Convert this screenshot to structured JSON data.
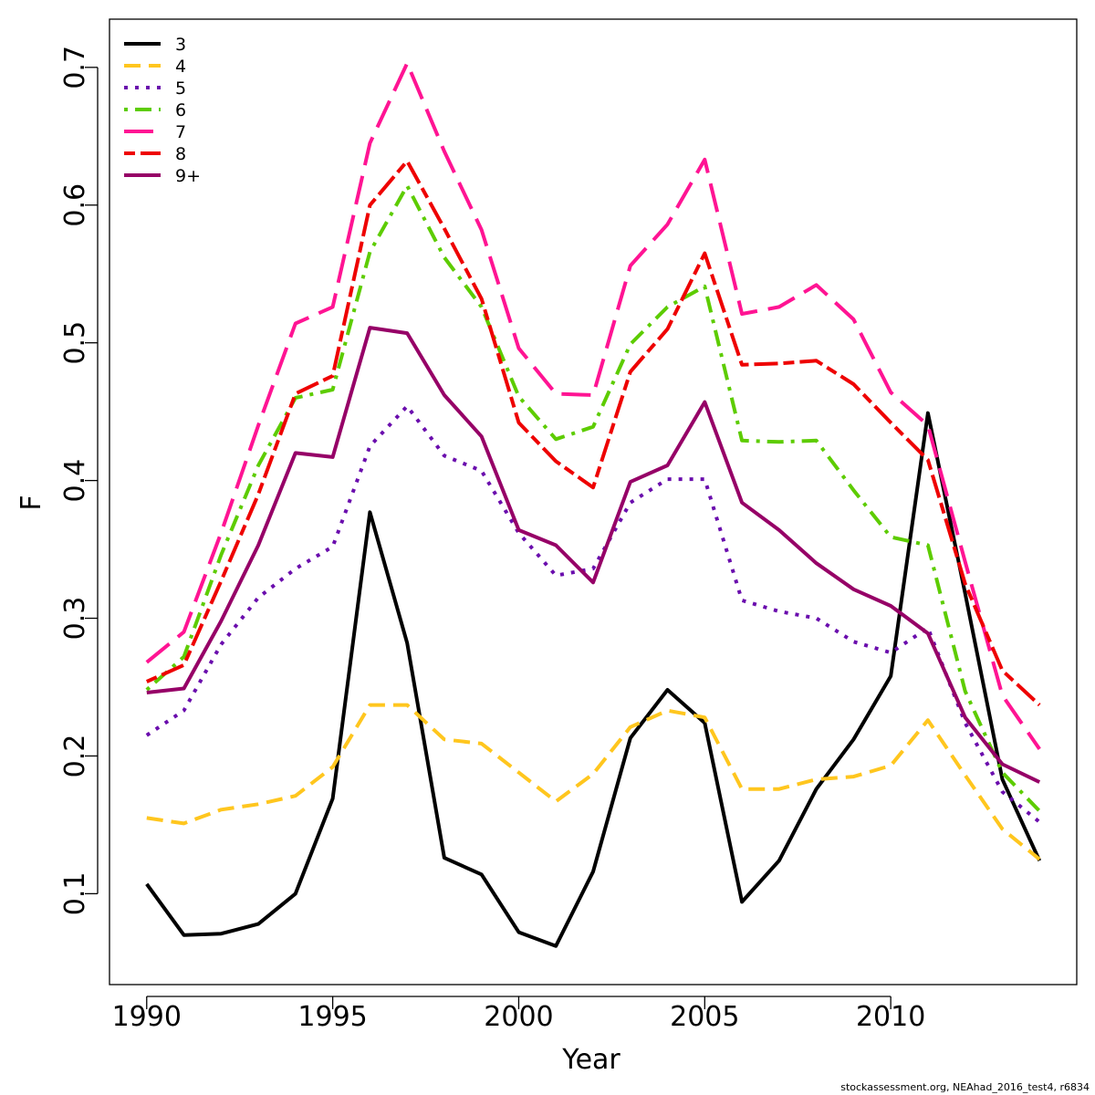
{
  "chart_data": {
    "type": "line",
    "xlabel": "Year",
    "ylabel": "F",
    "xlim": [
      1989,
      2015
    ],
    "ylim": [
      0.034,
      0.735
    ],
    "xticks": [
      1990,
      1995,
      2000,
      2005,
      2010
    ],
    "xtick_labels": [
      "1990",
      "1995",
      "2000",
      "2005",
      "2010"
    ],
    "yticks": [
      0.1,
      0.2,
      0.3,
      0.4,
      0.5,
      0.6,
      0.7
    ],
    "ytick_labels": [
      "0.1",
      "0.2",
      "0.3",
      "0.4",
      "0.5",
      "0.6",
      "0.7"
    ],
    "grid": false,
    "legend_position": "top-left",
    "x": [
      1990,
      1991,
      1992,
      1993,
      1994,
      1995,
      1996,
      1997,
      1998,
      1999,
      2000,
      2001,
      2002,
      2003,
      2004,
      2005,
      2006,
      2007,
      2008,
      2009,
      2010,
      2011,
      2012,
      2013,
      2014
    ],
    "series": [
      {
        "name": "3",
        "color": "#000000",
        "dash": "solid",
        "values": [
          0.107,
          0.07,
          0.071,
          0.078,
          0.1,
          0.169,
          0.377,
          0.282,
          0.126,
          0.114,
          0.072,
          0.062,
          0.116,
          0.213,
          0.248,
          0.224,
          0.094,
          0.124,
          0.176,
          0.212,
          0.258,
          0.449,
          0.318,
          0.183,
          0.124
        ]
      },
      {
        "name": "4",
        "color": "#FFC61E",
        "dash": "dashed",
        "values": [
          0.155,
          0.151,
          0.161,
          0.165,
          0.171,
          0.192,
          0.237,
          0.237,
          0.212,
          0.209,
          0.188,
          0.167,
          0.187,
          0.221,
          0.233,
          0.228,
          0.176,
          0.176,
          0.183,
          0.185,
          0.193,
          0.226,
          0.186,
          0.147,
          0.125
        ]
      },
      {
        "name": "5",
        "color": "#6A0DAD",
        "dash": "dotted",
        "values": [
          0.215,
          0.233,
          0.281,
          0.315,
          0.336,
          0.352,
          0.425,
          0.454,
          0.418,
          0.407,
          0.362,
          0.331,
          0.336,
          0.384,
          0.401,
          0.401,
          0.313,
          0.305,
          0.3,
          0.283,
          0.275,
          0.293,
          0.224,
          0.174,
          0.152
        ]
      },
      {
        "name": "6",
        "color": "#5DCC00",
        "dash": "dotdash",
        "values": [
          0.248,
          0.272,
          0.346,
          0.411,
          0.46,
          0.466,
          0.566,
          0.614,
          0.562,
          0.526,
          0.461,
          0.43,
          0.439,
          0.499,
          0.526,
          0.541,
          0.429,
          0.428,
          0.429,
          0.393,
          0.359,
          0.353,
          0.247,
          0.188,
          0.16
        ]
      },
      {
        "name": "7",
        "color": "#FF1493",
        "dash": "longdash",
        "values": [
          0.268,
          0.29,
          0.362,
          0.44,
          0.514,
          0.526,
          0.645,
          0.703,
          0.639,
          0.582,
          0.496,
          0.463,
          0.462,
          0.556,
          0.586,
          0.633,
          0.521,
          0.526,
          0.542,
          0.517,
          0.464,
          0.44,
          0.341,
          0.244,
          0.205
        ]
      },
      {
        "name": "8",
        "color": "#EE0000",
        "dash": "twodash",
        "values": [
          0.254,
          0.266,
          0.327,
          0.39,
          0.463,
          0.476,
          0.6,
          0.632,
          0.583,
          0.532,
          0.442,
          0.414,
          0.395,
          0.479,
          0.51,
          0.565,
          0.484,
          0.485,
          0.487,
          0.47,
          0.442,
          0.415,
          0.325,
          0.262,
          0.237
        ]
      },
      {
        "name": "9+",
        "color": "#960067",
        "dash": "solid",
        "values": [
          0.246,
          0.249,
          0.298,
          0.353,
          0.42,
          0.417,
          0.511,
          0.507,
          0.462,
          0.432,
          0.364,
          0.353,
          0.326,
          0.399,
          0.411,
          0.457,
          0.384,
          0.364,
          0.34,
          0.321,
          0.309,
          0.289,
          0.228,
          0.194,
          0.181
        ]
      }
    ]
  },
  "footnote": "stockassessment.org, NEAhad_2016_test4, r6834"
}
